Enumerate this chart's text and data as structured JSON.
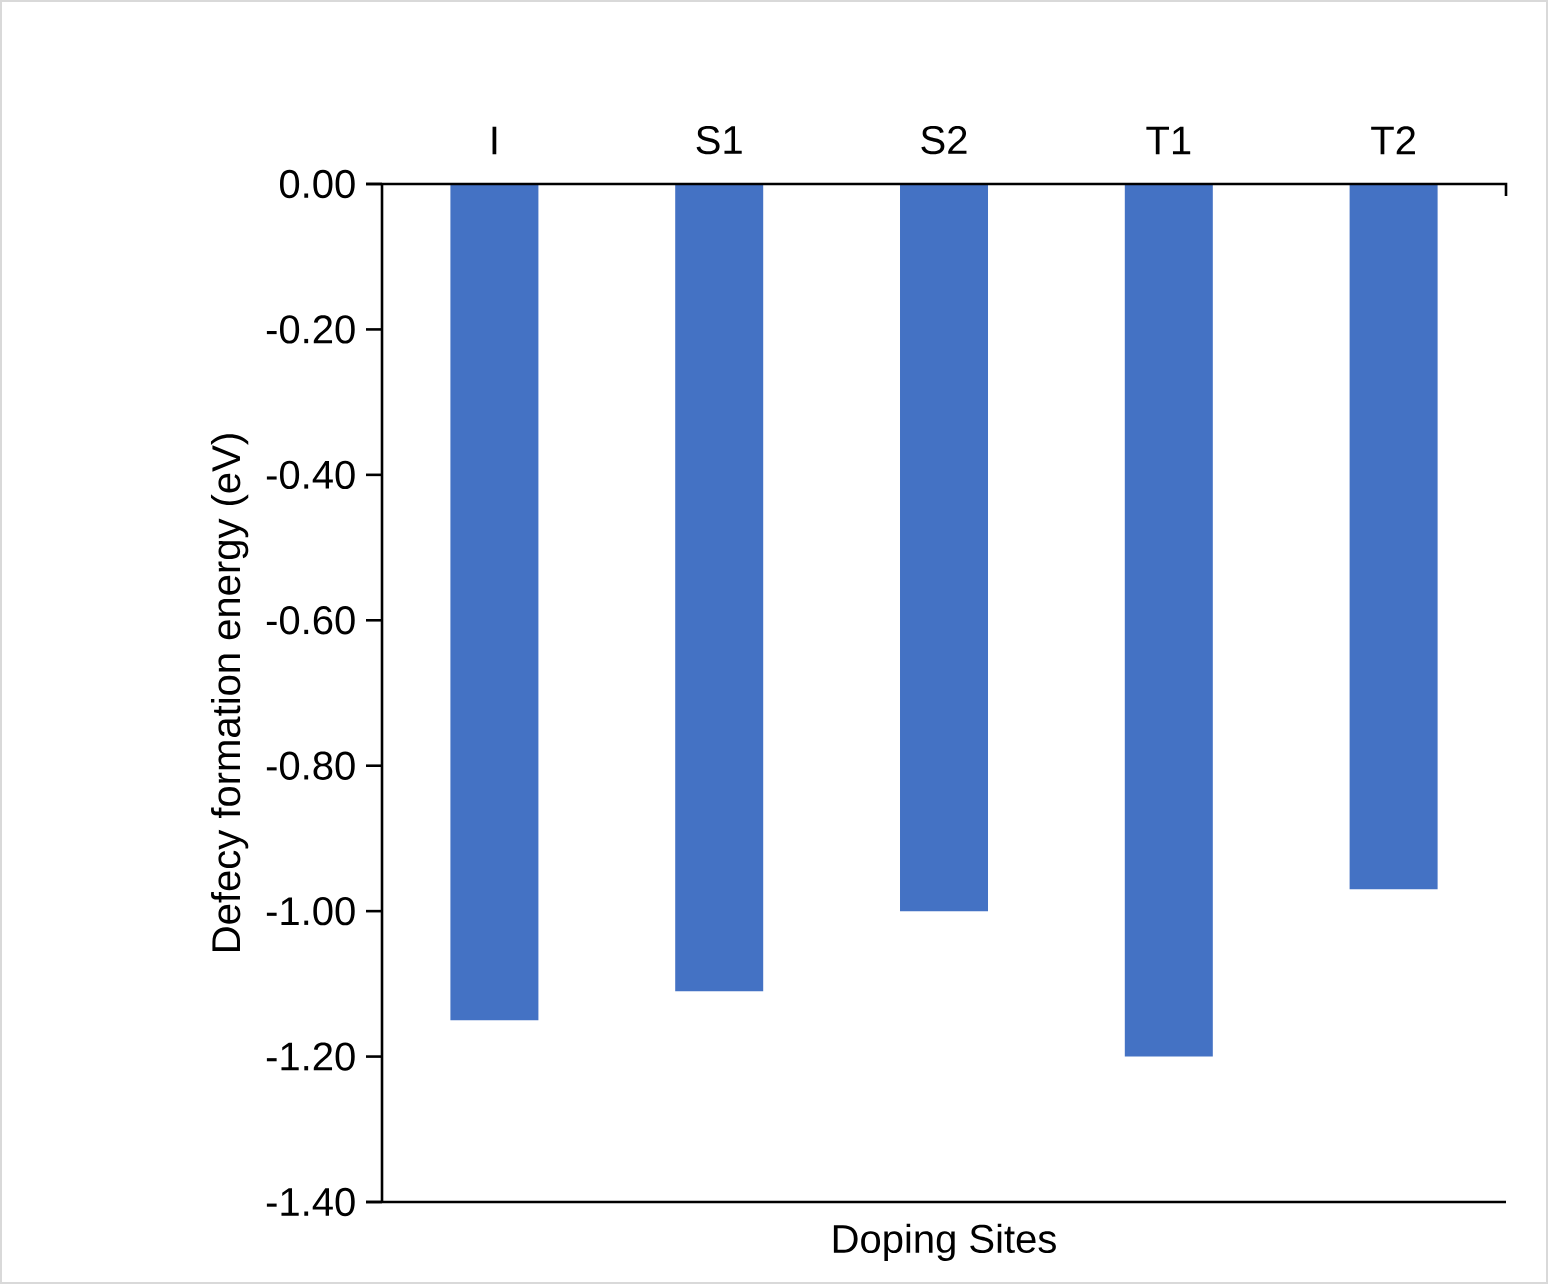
{
  "chart_data": {
    "type": "bar",
    "xlabel": "Doping Sites",
    "ylabel": "Defecy formation energy (eV)",
    "categories": [
      "I",
      "S1",
      "S2",
      "T1",
      "T2"
    ],
    "values": [
      -1.15,
      -1.11,
      -1.0,
      -1.2,
      -0.97
    ],
    "color": "#4472c4",
    "ylim": [
      -1.4,
      0.0
    ],
    "yticks": [
      {
        "value": 0.0,
        "label": "0.00"
      },
      {
        "value": -0.2,
        "label": "-0.20"
      },
      {
        "value": -0.4,
        "label": "-0.40"
      },
      {
        "value": -0.6,
        "label": "-0.60"
      },
      {
        "value": -0.8,
        "label": "-0.80"
      },
      {
        "value": -1.0,
        "label": "-1.00"
      },
      {
        "value": -1.2,
        "label": "-1.20"
      },
      {
        "value": -1.4,
        "label": "-1.40"
      }
    ],
    "grid": false
  }
}
